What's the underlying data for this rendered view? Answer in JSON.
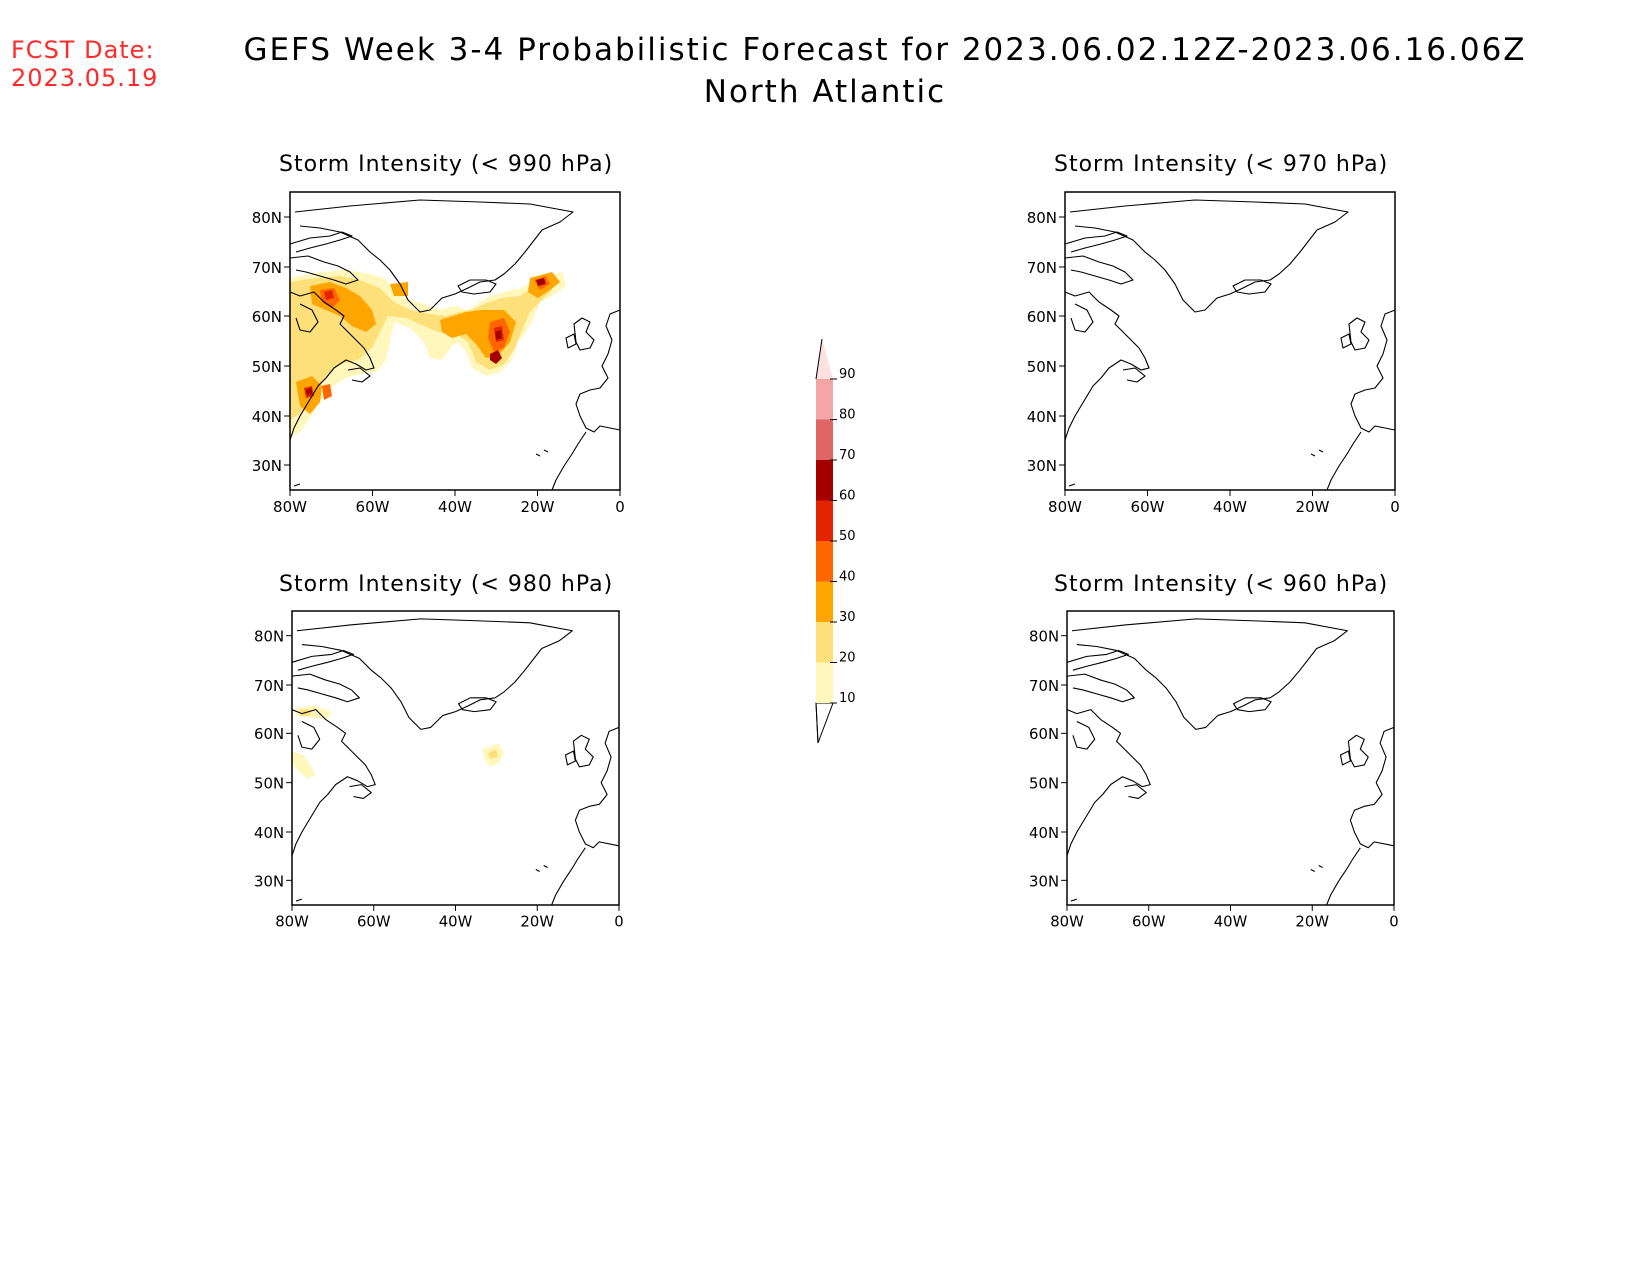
{
  "header": {
    "fcst_label": "FCST Date:",
    "fcst_date": "2023.05.19",
    "title": "GEFS Week 3-4 Probabilistic Forecast for 2023.06.02.12Z-2023.06.16.06Z",
    "subtitle": "North Atlantic"
  },
  "panels": [
    {
      "title": "Storm Intensity (< 990 hPa)"
    },
    {
      "title": "Storm Intensity (< 970 hPa)"
    },
    {
      "title": "Storm Intensity (< 980 hPa)"
    },
    {
      "title": "Storm Intensity (< 960 hPa)"
    }
  ],
  "axes": {
    "lat_labels": [
      "80N",
      "70N",
      "60N",
      "50N",
      "40N",
      "30N"
    ],
    "lon_labels": [
      "80W",
      "60W",
      "40W",
      "20W",
      "0"
    ]
  },
  "colorbar": {
    "levels": [
      "10",
      "20",
      "30",
      "40",
      "50",
      "60",
      "70",
      "80",
      "90"
    ],
    "colors": [
      "#fff7bc",
      "#fde07a",
      "#ffa500",
      "#ff6600",
      "#e32400",
      "#a50000",
      "#e06666",
      "#f4a6a6",
      "#fde0e0"
    ]
  }
}
